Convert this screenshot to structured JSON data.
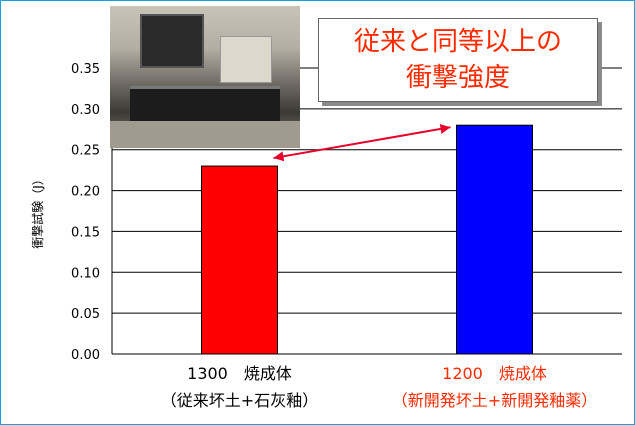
{
  "chart_data": {
    "type": "bar",
    "categories": [
      {
        "line1": "1300　焼成体",
        "line2": "（従来坏土+石灰釉）"
      },
      {
        "line1": "1200　焼成体",
        "line2": "（新開発坏土+新開発釉薬）"
      }
    ],
    "values": [
      0.23,
      0.28
    ],
    "bar_colors": [
      "#ff0000",
      "#0000ff"
    ],
    "label_colors": [
      "#000000",
      "#ff2a00"
    ],
    "ylabel": "衝撃試験（J）",
    "ylim": [
      0,
      0.35
    ],
    "yticks": [
      0.0,
      0.05,
      0.1,
      0.15,
      0.2,
      0.25,
      0.3,
      0.35
    ],
    "grid": true
  },
  "callout": {
    "line1": "従来と同等以上の",
    "line2": "衝撃強度",
    "color": "#ff2a00"
  },
  "colors": {
    "frame_border": "#1aa0d8",
    "arrow": "#e8002a"
  }
}
